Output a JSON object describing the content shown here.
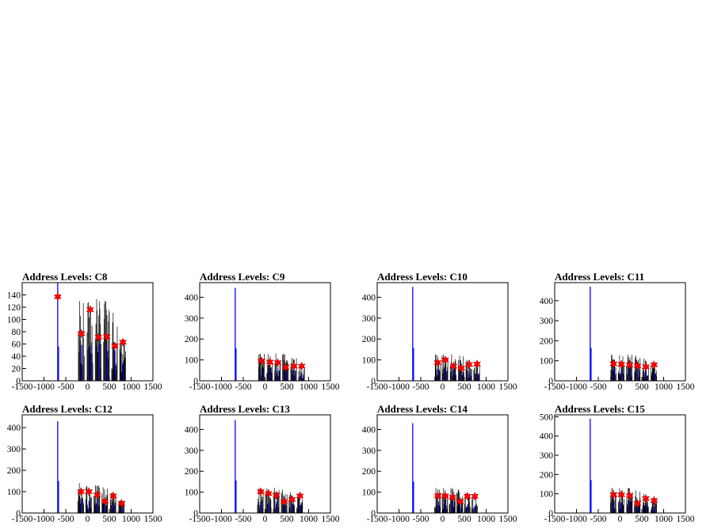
{
  "colors": {
    "peak": "#0000ff",
    "hist": "#000000",
    "marker": "#ff0000",
    "frame": "#000000"
  },
  "xticks": [
    "-1500",
    "-1000",
    "-500",
    "0",
    "500",
    "1000",
    "1500"
  ],
  "chart_data": [
    {
      "type": "bar",
      "title": "Address Levels: C8",
      "xlim": [
        -1500,
        1500
      ],
      "ylim": [
        0,
        160
      ],
      "yticks": [
        "0",
        "20",
        "40",
        "60",
        "80",
        "100",
        "120",
        "140"
      ],
      "peak": {
        "x": -685,
        "y": 160
      },
      "markers": [
        {
          "x": -685,
          "y": 137
        },
        {
          "x": -140,
          "y": 77
        },
        {
          "x": 60,
          "y": 116
        },
        {
          "x": 250,
          "y": 71
        },
        {
          "x": 440,
          "y": 72
        },
        {
          "x": 625,
          "y": 57
        },
        {
          "x": 810,
          "y": 63
        }
      ],
      "clusters": [
        {
          "x": -140,
          "max": 130
        },
        {
          "x": 60,
          "max": 128
        },
        {
          "x": 250,
          "max": 133
        },
        {
          "x": 440,
          "max": 130
        },
        {
          "x": 625,
          "max": 111
        },
        {
          "x": 810,
          "max": 66
        }
      ]
    },
    {
      "type": "bar",
      "title": "Address Levels: C9",
      "xlim": [
        -1500,
        1500
      ],
      "ylim": [
        0,
        470
      ],
      "yticks": [
        "0",
        "100",
        "200",
        "300",
        "400"
      ],
      "peak": {
        "x": -685,
        "y": 445
      },
      "markers": [
        {
          "x": -80,
          "y": 95
        },
        {
          "x": 110,
          "y": 90
        },
        {
          "x": 290,
          "y": 87
        },
        {
          "x": 470,
          "y": 65
        },
        {
          "x": 660,
          "y": 70
        },
        {
          "x": 840,
          "y": 70
        }
      ],
      "clusters": [
        {
          "x": -80,
          "max": 130
        },
        {
          "x": 110,
          "max": 128
        },
        {
          "x": 290,
          "max": 132
        },
        {
          "x": 470,
          "max": 130
        },
        {
          "x": 660,
          "max": 110
        },
        {
          "x": 840,
          "max": 72
        }
      ]
    },
    {
      "type": "bar",
      "title": "Address Levels: C10",
      "xlim": [
        -1500,
        1500
      ],
      "ylim": [
        0,
        470
      ],
      "yticks": [
        "0",
        "100",
        "200",
        "300",
        "400"
      ],
      "peak": {
        "x": -685,
        "y": 450
      },
      "markers": [
        {
          "x": -110,
          "y": 87
        },
        {
          "x": 60,
          "y": 100
        },
        {
          "x": 250,
          "y": 70
        },
        {
          "x": 430,
          "y": 60
        },
        {
          "x": 610,
          "y": 78
        },
        {
          "x": 790,
          "y": 80
        }
      ],
      "clusters": [
        {
          "x": -110,
          "max": 125
        },
        {
          "x": 60,
          "max": 126
        },
        {
          "x": 250,
          "max": 127
        },
        {
          "x": 430,
          "max": 120
        },
        {
          "x": 610,
          "max": 100
        },
        {
          "x": 790,
          "max": 82
        }
      ]
    },
    {
      "type": "bar",
      "title": "Address Levels: C11",
      "xlim": [
        -1500,
        1500
      ],
      "ylim": [
        0,
        490
      ],
      "yticks": [
        "0",
        "100",
        "200",
        "300",
        "400"
      ],
      "peak": {
        "x": -685,
        "y": 470
      },
      "markers": [
        {
          "x": -150,
          "y": 85
        },
        {
          "x": 30,
          "y": 82
        },
        {
          "x": 220,
          "y": 80
        },
        {
          "x": 400,
          "y": 75
        },
        {
          "x": 590,
          "y": 70
        },
        {
          "x": 780,
          "y": 80
        }
      ],
      "clusters": [
        {
          "x": -150,
          "max": 130
        },
        {
          "x": 30,
          "max": 128
        },
        {
          "x": 220,
          "max": 132
        },
        {
          "x": 400,
          "max": 125
        },
        {
          "x": 590,
          "max": 110
        },
        {
          "x": 780,
          "max": 82
        }
      ]
    },
    {
      "type": "bar",
      "title": "Address Levels: C12",
      "xlim": [
        -1500,
        1500
      ],
      "ylim": [
        0,
        460
      ],
      "yticks": [
        "0",
        "100",
        "200",
        "300",
        "400"
      ],
      "peak": {
        "x": -685,
        "y": 430
      },
      "markers": [
        {
          "x": -150,
          "y": 100
        },
        {
          "x": 30,
          "y": 100
        },
        {
          "x": 220,
          "y": 85
        },
        {
          "x": 400,
          "y": 55
        },
        {
          "x": 590,
          "y": 80
        },
        {
          "x": 780,
          "y": 45
        }
      ],
      "clusters": [
        {
          "x": -150,
          "max": 140
        },
        {
          "x": 30,
          "max": 128
        },
        {
          "x": 220,
          "max": 130
        },
        {
          "x": 400,
          "max": 120
        },
        {
          "x": 590,
          "max": 95
        },
        {
          "x": 780,
          "max": 60
        }
      ]
    },
    {
      "type": "bar",
      "title": "Address Levels: C13",
      "xlim": [
        -1500,
        1500
      ],
      "ylim": [
        0,
        470
      ],
      "yticks": [
        "0",
        "100",
        "200",
        "300",
        "400"
      ],
      "peak": {
        "x": -685,
        "y": 445
      },
      "markers": [
        {
          "x": -100,
          "y": 102
        },
        {
          "x": 80,
          "y": 93
        },
        {
          "x": 260,
          "y": 85
        },
        {
          "x": 440,
          "y": 55
        },
        {
          "x": 620,
          "y": 65
        },
        {
          "x": 800,
          "y": 82
        }
      ],
      "clusters": [
        {
          "x": -100,
          "max": 118
        },
        {
          "x": 80,
          "max": 118
        },
        {
          "x": 260,
          "max": 120
        },
        {
          "x": 440,
          "max": 112
        },
        {
          "x": 620,
          "max": 100
        },
        {
          "x": 800,
          "max": 85
        }
      ]
    },
    {
      "type": "bar",
      "title": "Address Levels: C14",
      "xlim": [
        -1500,
        1500
      ],
      "ylim": [
        0,
        470
      ],
      "yticks": [
        "0",
        "100",
        "200",
        "300",
        "400"
      ],
      "peak": {
        "x": -685,
        "y": 430
      },
      "markers": [
        {
          "x": -110,
          "y": 82
        },
        {
          "x": 60,
          "y": 82
        },
        {
          "x": 230,
          "y": 75
        },
        {
          "x": 400,
          "y": 55
        },
        {
          "x": 570,
          "y": 80
        },
        {
          "x": 740,
          "y": 80
        }
      ],
      "clusters": [
        {
          "x": -110,
          "max": 120
        },
        {
          "x": 60,
          "max": 118
        },
        {
          "x": 230,
          "max": 120
        },
        {
          "x": 400,
          "max": 115
        },
        {
          "x": 570,
          "max": 95
        },
        {
          "x": 740,
          "max": 82
        }
      ]
    },
    {
      "type": "bar",
      "title": "Address Levels: C15",
      "xlim": [
        -1500,
        1500
      ],
      "ylim": [
        0,
        510
      ],
      "yticks": [
        "0",
        "100",
        "200",
        "300",
        "400",
        "500"
      ],
      "peak": {
        "x": -685,
        "y": 490
      },
      "markers": [
        {
          "x": -150,
          "y": 95
        },
        {
          "x": 30,
          "y": 95
        },
        {
          "x": 220,
          "y": 90
        },
        {
          "x": 400,
          "y": 50
        },
        {
          "x": 590,
          "y": 75
        },
        {
          "x": 780,
          "y": 65
        }
      ],
      "clusters": [
        {
          "x": -150,
          "max": 130
        },
        {
          "x": 30,
          "max": 128
        },
        {
          "x": 220,
          "max": 130
        },
        {
          "x": 400,
          "max": 118
        },
        {
          "x": 590,
          "max": 100
        },
        {
          "x": 780,
          "max": 72
        }
      ]
    }
  ]
}
